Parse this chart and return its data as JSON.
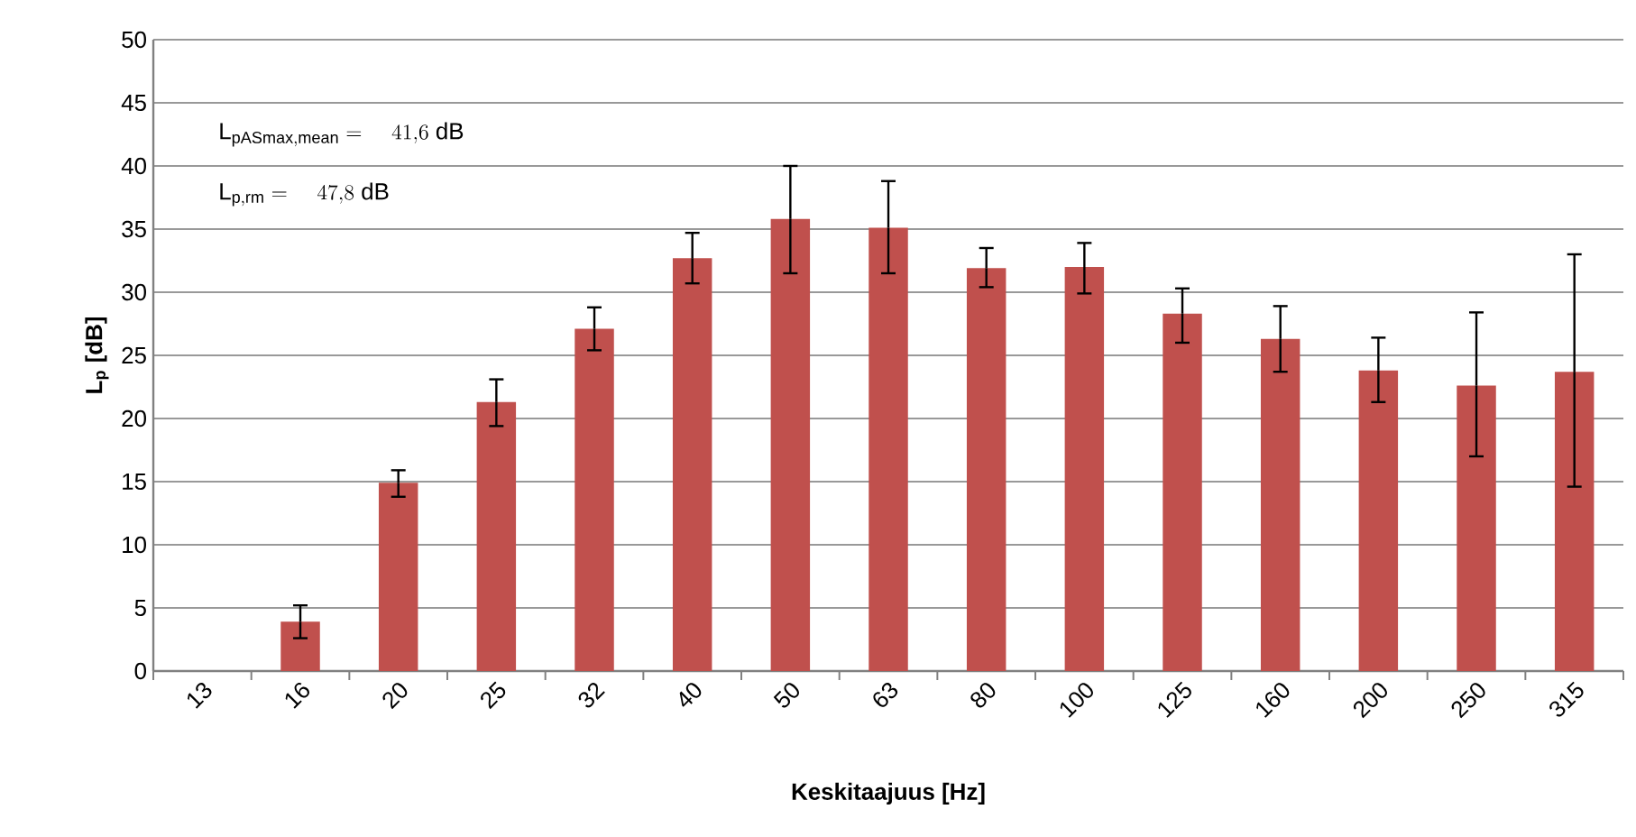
{
  "chart_data": {
    "type": "bar",
    "xlabel": "Keskitaajuus [Hz]",
    "ylabel": "L$_{p}$ [dB]",
    "categories": [
      "13",
      "16",
      "20",
      "25",
      "32",
      "40",
      "50",
      "63",
      "80",
      "100",
      "125",
      "160",
      "200",
      "250",
      "315"
    ],
    "values": [
      0,
      3.9,
      14.9,
      21.3,
      27.1,
      32.7,
      35.8,
      35.1,
      31.9,
      32.0,
      28.3,
      26.3,
      23.8,
      22.6,
      23.7
    ],
    "errors": [
      null,
      [
        2.6,
        5.2
      ],
      [
        13.8,
        15.9
      ],
      [
        19.4,
        23.1
      ],
      [
        25.4,
        28.8
      ],
      [
        30.7,
        34.7
      ],
      [
        31.5,
        40.0
      ],
      [
        31.5,
        38.8
      ],
      [
        30.4,
        33.5
      ],
      [
        29.9,
        33.9
      ],
      [
        26.0,
        30.3
      ],
      [
        23.7,
        28.9
      ],
      [
        21.3,
        26.4
      ],
      [
        17.0,
        28.4
      ],
      [
        14.6,
        33.0
      ]
    ],
    "color": "#c0504d",
    "ylim": [
      0,
      50
    ],
    "yticks": [
      0,
      5,
      10,
      15,
      20,
      25,
      30,
      35,
      40,
      45,
      50
    ],
    "grid": "y",
    "annotations": [
      "\\mathrm{L_{pASmax,mean}} = \\quad 41{,}6\\ \\mathrm{dB}",
      "\\mathrm{L_{p,rm}} = \\quad 47{,}8\\ \\mathrm{dB}"
    ]
  }
}
